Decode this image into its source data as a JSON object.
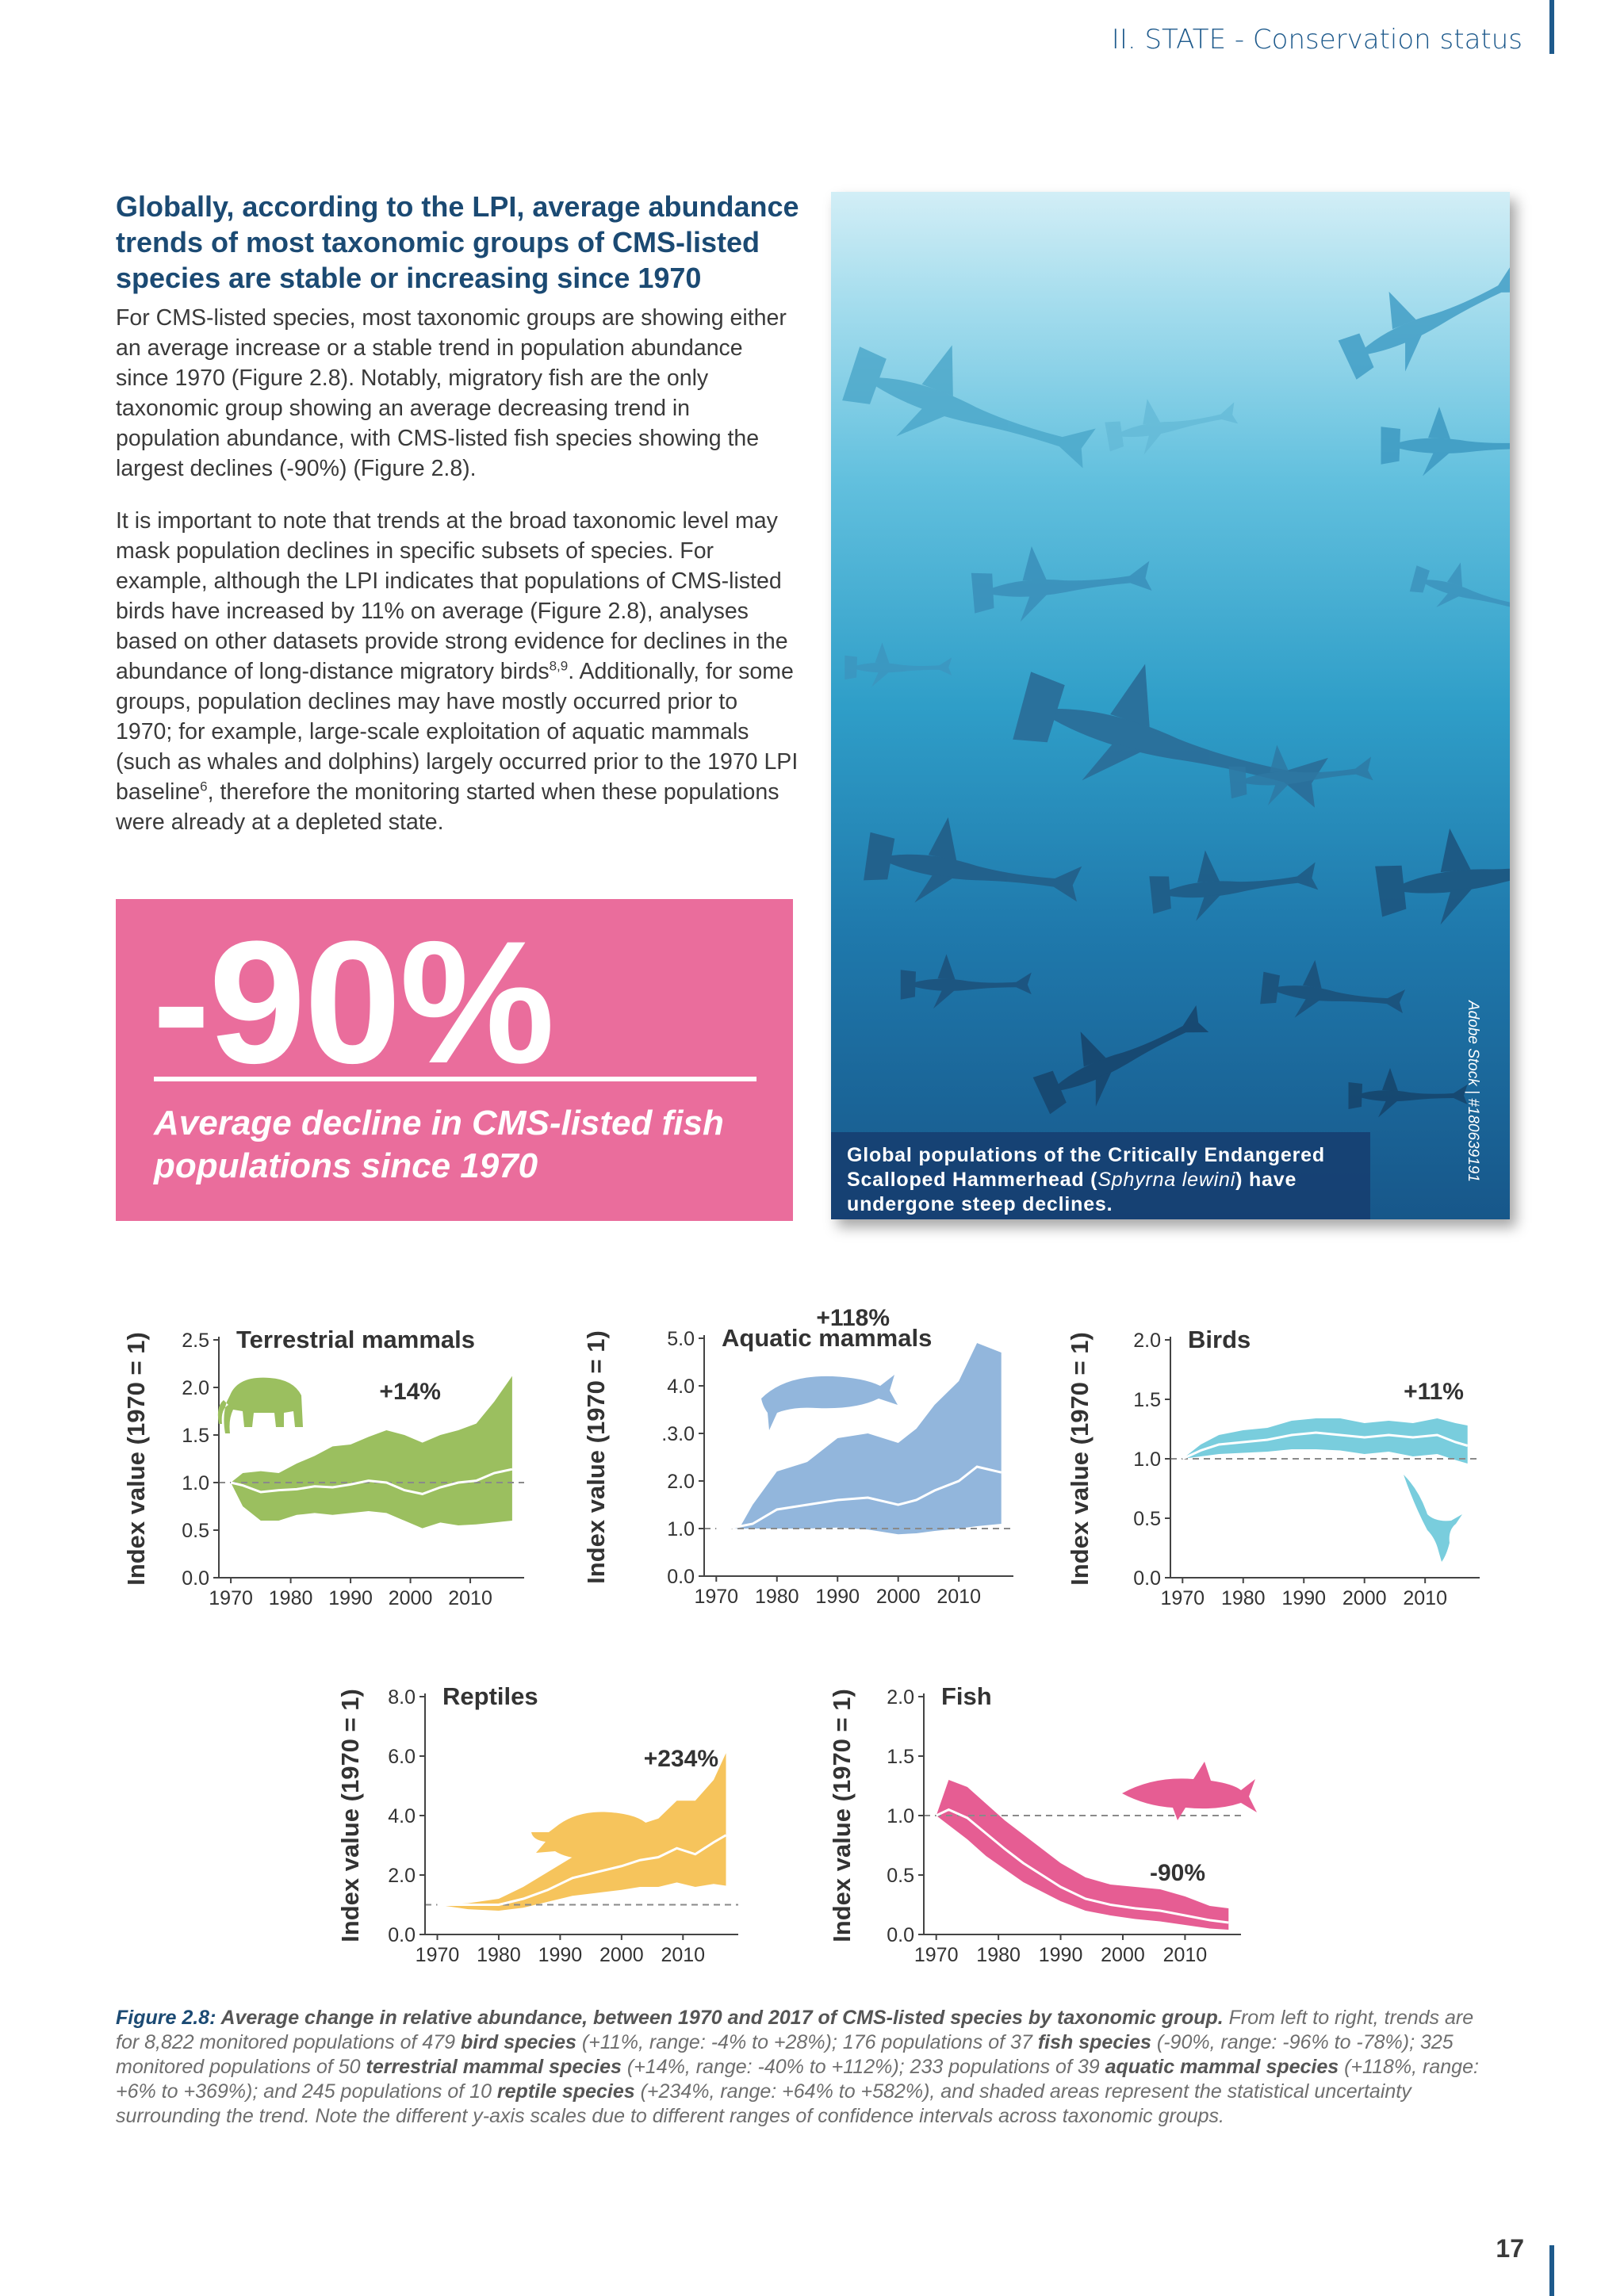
{
  "header": {
    "section": "II. STATE - Conservation status"
  },
  "section_title": "Globally, according to the LPI, average abundance trends of most taxonomic groups of CMS-listed species are stable or increasing since 1970",
  "paragraph1": "For CMS-listed species, most taxonomic groups are showing either an average increase or a stable trend in population abundance since 1970 (Figure 2.8). Notably, migratory fish are the only taxonomic group showing an average decreasing trend in population abundance, with CMS-listed fish species showing the largest declines (-90%) (Figure 2.8).",
  "paragraph2": {
    "part1": "It is important to note that trends at the broad taxonomic level may mask population declines in specific subsets of species. For example, although the LPI indicates that populations of CMS-listed birds have increased by 11% on average (Figure 2.8), analyses based on other datasets provide strong evidence for declines in the abundance of long-distance migratory birds",
    "ref1": "8,9",
    "part2": ". Additionally, for some groups, population declines may have mostly occurred prior to 1970; for example, large-scale exploitation of aquatic mammals (such as whales and dolphins) largely occurred prior to the 1970 LPI baseline",
    "ref2": "6",
    "part3": ", therefore the monitoring started when these populations were already at a depleted state."
  },
  "stat_box": {
    "number": "-90%",
    "caption": "Average decline in CMS-listed fish populations since 1970"
  },
  "photo": {
    "caption_part1": "Global populations of the Critically Endangered Scalloped Hammerhead (",
    "caption_species": "Sphyrna lewini",
    "caption_part2": ") have undergone steep declines.",
    "credit": "Adobe Stock | #180639191"
  },
  "colors": {
    "terrestrial": "#9bbf5f",
    "aquatic": "#92b6dc",
    "birds": "#79cddd",
    "reptiles": "#f6c45c",
    "fish": "#e65d93",
    "accent": "#1b4a73"
  },
  "chart_data": [
    {
      "type": "area",
      "title": "Terrestrial mammals",
      "ylabel": "Index value (1970 = 1)",
      "annotation": "+14%",
      "icon": "elephant-icon",
      "xlim": [
        1968,
        2019
      ],
      "ylim": [
        0,
        2.5
      ],
      "xticks": [
        1970,
        1980,
        1990,
        2000,
        2010
      ],
      "yticks": [
        0,
        0.5,
        1,
        1.5,
        2,
        2.5
      ],
      "ytick_labels": [
        "0.0",
        "0.5",
        "1.0",
        "1.5",
        "2.0",
        "2.5"
      ],
      "baseline": 1,
      "x": [
        1970,
        1972,
        1975,
        1978,
        1981,
        1984,
        1987,
        1990,
        1993,
        1996,
        1999,
        2002,
        2005,
        2008,
        2011,
        2014,
        2017
      ],
      "mean": [
        1.0,
        0.97,
        0.9,
        0.92,
        0.93,
        0.96,
        0.95,
        0.98,
        1.02,
        1.0,
        0.92,
        0.88,
        0.95,
        1.0,
        1.02,
        1.1,
        1.14
      ],
      "lower": [
        1.0,
        0.75,
        0.6,
        0.6,
        0.66,
        0.68,
        0.66,
        0.68,
        0.7,
        0.68,
        0.6,
        0.52,
        0.58,
        0.55,
        0.56,
        0.58,
        0.6
      ],
      "upper": [
        1.0,
        1.1,
        1.12,
        1.1,
        1.2,
        1.28,
        1.38,
        1.4,
        1.48,
        1.55,
        1.5,
        1.42,
        1.5,
        1.55,
        1.62,
        1.85,
        2.12
      ]
    },
    {
      "type": "area",
      "title": "Aquatic mammals",
      "ylabel": "Index value (1970 = 1)",
      "annotation": "+118%",
      "icon": "whale-icon",
      "xlim": [
        1968,
        2019
      ],
      "ylim": [
        0,
        5
      ],
      "xticks": [
        1970,
        1980,
        1990,
        2000,
        2010
      ],
      "yticks": [
        0,
        1,
        2,
        3,
        4,
        5
      ],
      "ytick_labels": [
        "0.0",
        "1.0",
        "2.0",
        ".3.0",
        "4.0",
        "5.0"
      ],
      "baseline": 1,
      "x": [
        1970,
        1972,
        1974,
        1976,
        1980,
        1985,
        1990,
        1995,
        2000,
        2003,
        2006,
        2010,
        2013,
        2017
      ],
      "mean": [
        1.0,
        1.0,
        1.05,
        1.1,
        1.4,
        1.5,
        1.6,
        1.65,
        1.5,
        1.6,
        1.8,
        2.0,
        2.3,
        2.18
      ],
      "lower": [
        1.0,
        1.0,
        1.0,
        1.0,
        1.0,
        1.0,
        1.02,
        0.98,
        0.88,
        0.9,
        0.95,
        1.0,
        1.05,
        1.1
      ],
      "upper": [
        1.0,
        1.0,
        1.05,
        1.5,
        2.2,
        2.4,
        2.9,
        3.0,
        2.8,
        3.1,
        3.6,
        4.1,
        4.9,
        4.7
      ]
    },
    {
      "type": "area",
      "title": "Birds",
      "ylabel": "Index value (1970 = 1)",
      "annotation": "+11%",
      "icon": "albatross-icon",
      "xlim": [
        1968,
        2019
      ],
      "ylim": [
        0,
        2
      ],
      "xticks": [
        1970,
        1980,
        1990,
        2000,
        2010
      ],
      "yticks": [
        0,
        0.5,
        1,
        1.5,
        2
      ],
      "ytick_labels": [
        "0.0",
        "0.5",
        "1.0",
        "1.5",
        "2.0"
      ],
      "baseline": 1,
      "x": [
        1970,
        1973,
        1976,
        1980,
        1984,
        1988,
        1992,
        1996,
        2000,
        2004,
        2008,
        2012,
        2015,
        2017
      ],
      "mean": [
        1.0,
        1.07,
        1.12,
        1.14,
        1.16,
        1.2,
        1.22,
        1.2,
        1.18,
        1.2,
        1.18,
        1.2,
        1.14,
        1.11
      ],
      "lower": [
        1.0,
        1.02,
        1.04,
        1.05,
        1.06,
        1.08,
        1.08,
        1.07,
        1.04,
        1.06,
        1.02,
        1.04,
        0.99,
        0.96
      ],
      "upper": [
        1.0,
        1.12,
        1.2,
        1.24,
        1.26,
        1.32,
        1.34,
        1.34,
        1.3,
        1.32,
        1.3,
        1.34,
        1.3,
        1.28
      ]
    },
    {
      "type": "area",
      "title": "Reptiles",
      "ylabel": "Index value (1970 = 1)",
      "annotation": "+234%",
      "icon": "turtle-icon",
      "xlim": [
        1968,
        2019
      ],
      "ylim": [
        0,
        8
      ],
      "xticks": [
        1970,
        1980,
        1990,
        2000,
        2010
      ],
      "yticks": [
        0,
        2,
        4,
        6,
        8
      ],
      "ytick_labels": [
        "0.0",
        "2.0",
        "4.0",
        "6.0",
        "8.0"
      ],
      "baseline": 1,
      "x": [
        1970,
        1975,
        1980,
        1984,
        1988,
        1992,
        1996,
        2000,
        2003,
        2006,
        2009,
        2012,
        2015,
        2017
      ],
      "mean": [
        1.0,
        1.0,
        1.0,
        1.2,
        1.5,
        1.9,
        2.1,
        2.3,
        2.5,
        2.6,
        2.9,
        2.7,
        3.1,
        3.34
      ],
      "lower": [
        1.0,
        0.85,
        0.8,
        0.9,
        1.1,
        1.3,
        1.4,
        1.5,
        1.6,
        1.6,
        1.75,
        1.6,
        1.7,
        1.64
      ],
      "upper": [
        1.0,
        1.05,
        1.2,
        1.6,
        2.1,
        2.6,
        2.9,
        3.3,
        3.7,
        3.9,
        4.5,
        4.5,
        5.2,
        6.1
      ]
    },
    {
      "type": "area",
      "title": "Fish",
      "ylabel": "Index value (1970 = 1)",
      "annotation": "-90%",
      "icon": "shark-icon",
      "xlim": [
        1968,
        2019
      ],
      "ylim": [
        0,
        2
      ],
      "xticks": [
        1970,
        1980,
        1990,
        2000,
        2010
      ],
      "yticks": [
        0,
        0.5,
        1,
        1.5,
        2
      ],
      "ytick_labels": [
        "0.0",
        "0.5",
        "1.0",
        "1.5",
        "2.0"
      ],
      "baseline": 1,
      "x": [
        1970,
        1972,
        1975,
        1978,
        1981,
        1984,
        1987,
        1990,
        1994,
        1998,
        2002,
        2006,
        2010,
        2014,
        2017
      ],
      "mean": [
        1.0,
        1.05,
        0.98,
        0.85,
        0.72,
        0.6,
        0.5,
        0.4,
        0.3,
        0.25,
        0.22,
        0.2,
        0.16,
        0.12,
        0.1
      ],
      "lower": [
        1.0,
        0.92,
        0.8,
        0.66,
        0.55,
        0.44,
        0.36,
        0.28,
        0.2,
        0.16,
        0.13,
        0.11,
        0.08,
        0.05,
        0.04
      ],
      "upper": [
        1.0,
        1.3,
        1.24,
        1.1,
        0.96,
        0.84,
        0.72,
        0.6,
        0.48,
        0.42,
        0.4,
        0.38,
        0.32,
        0.24,
        0.22
      ]
    }
  ],
  "figure_caption": {
    "label": "Figure 2.8:",
    "title": " Average change in relative abundance, between 1970 and 2017 of CMS-listed species by taxonomic group.",
    "t1": " From left to right, trends are for 8,822 monitored populations of 479 ",
    "b1": "bird species",
    "t2": " (+11%, range: -4% to +28%); 176 populations of 37 ",
    "b2": "fish species",
    "t3": " (-90%, range: -96% to -78%); 325 monitored populations of 50 ",
    "b3": "terrestrial mammal species",
    "t4": " (+14%, range: -40% to +112%); 233 populations of 39 ",
    "b4": "aquatic mammal species",
    "t5": " (+118%, range: +6% to +369%); and 245 populations of 10 ",
    "b5": "reptile species",
    "t6": " (+234%, range: +64% to +582%), and shaded areas represent the statistical uncertainty surrounding the trend. Note the different y-axis scales due to different ranges of confidence intervals across taxonomic groups."
  },
  "page_number": "17"
}
